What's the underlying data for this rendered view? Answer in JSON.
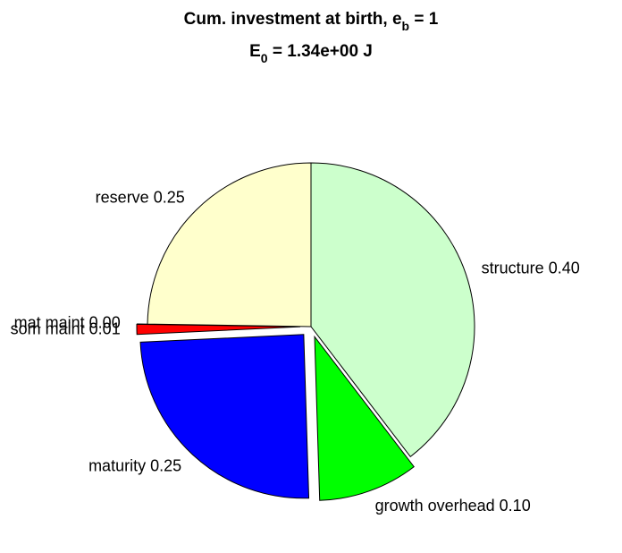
{
  "chart_data": {
    "type": "pie",
    "title_lines": [
      [
        "Cum. investment at birth, e",
        "b",
        " = 1"
      ],
      [
        "E",
        "0",
        " = 1.34e+00 J"
      ]
    ],
    "categories": [
      "structure",
      "growth overhead",
      "maturity",
      "som maint",
      "mat maint",
      "reserve"
    ],
    "values": [
      0.4,
      0.1,
      0.25,
      0.01,
      0,
      0.25
    ],
    "value_labels": [
      "0.40",
      "0.10",
      "0.25",
      "0.01",
      "0.00",
      "0.25"
    ],
    "colors": [
      "#ccffcc",
      "#00ff00",
      "#0000ff",
      "#ff0000",
      "#000000",
      "#ffffcc"
    ],
    "explode": [
      false,
      true,
      true,
      true,
      true,
      false
    ]
  }
}
